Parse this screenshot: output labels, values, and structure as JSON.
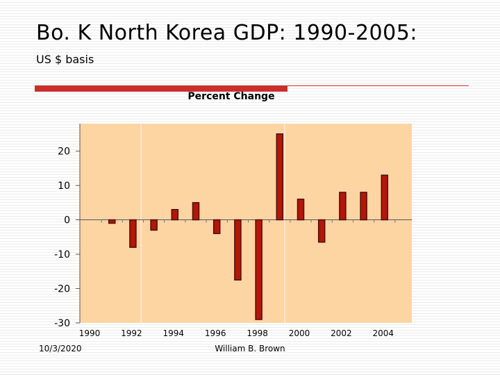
{
  "slide": {
    "title": "Bo. K North Korea GDP: 1990-2005:",
    "subtitle": "US $ basis",
    "footer_date": "10/3/2020",
    "footer_author": "William B. Brown"
  },
  "colors": {
    "accent": "#c9302c",
    "plot_background": "#fdd5a3",
    "bar_fill": "#b81407",
    "bar_edge": "#4a0f08"
  },
  "chart_data": {
    "type": "bar",
    "title": "Percent Change",
    "xlabel": "",
    "ylabel": "",
    "ylim": [
      -30,
      28
    ],
    "y_ticks": [
      20,
      10,
      0,
      -10,
      -20,
      -30
    ],
    "x_tick_labels": [
      "1990",
      "1992",
      "1994",
      "1996",
      "1998",
      "2000",
      "2002",
      "2004"
    ],
    "categories": [
      "1990",
      "1991",
      "1992",
      "1993",
      "1994",
      "1995",
      "1996",
      "1997",
      "1998",
      "1999",
      "2000",
      "2001",
      "2002",
      "2003",
      "2004",
      "2005"
    ],
    "values": [
      null,
      -1,
      -8,
      -3,
      3,
      5,
      -4,
      -17.5,
      -29,
      25,
      6,
      -6.5,
      8,
      8,
      13,
      null
    ],
    "grid": false
  }
}
